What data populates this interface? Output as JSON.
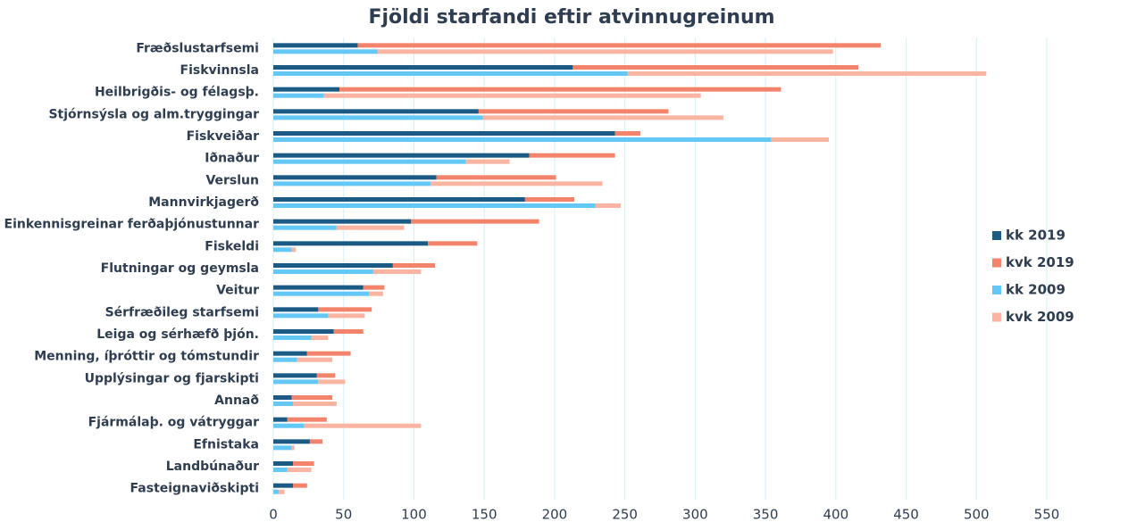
{
  "chart_data": {
    "type": "bar",
    "orientation": "horizontal",
    "title": "Fjöldi starfandi eftir atvinnugreinum",
    "categories": [
      "Fræðslustarfsemi",
      "Fiskvinnsla",
      "Heilbrigðis- og félagsþ.",
      "Stjórnsýsla og alm.tryggingar",
      "Fiskveiðar",
      "Iðnaður",
      "Verslun",
      "Mannvirkjagerð",
      "Einkennisgreinar ferðaþjónustunnar",
      "Fiskeldi",
      "Flutningar og geymsla",
      "Veitur",
      "Sérfræðileg starfsemi",
      "Leiga og sérhæfð þjón.",
      "Menning, íþróttir og tómstundir",
      "Upplýsingar og fjarskipti",
      "Annað",
      "Fjármálaþ. og vátryggar",
      "Efnistaka",
      "Landbúnaður",
      "Fasteignaviðskipti"
    ],
    "series": [
      {
        "name": "kk 2019",
        "color": "#1a5a84",
        "values": [
          60,
          213,
          47,
          146,
          243,
          182,
          116,
          179,
          98,
          110,
          85,
          64,
          32,
          43,
          24,
          31,
          13,
          10,
          26,
          14,
          14
        ]
      },
      {
        "name": "kvk 2019",
        "color": "#f4836b",
        "values": [
          372,
          203,
          314,
          135,
          18,
          61,
          85,
          35,
          91,
          35,
          30,
          15,
          38,
          21,
          31,
          13,
          29,
          28,
          9,
          15,
          10
        ]
      },
      {
        "name": "kk 2009",
        "color": "#63c8f5",
        "values": [
          74,
          252,
          36,
          149,
          354,
          137,
          112,
          229,
          45,
          13,
          71,
          68,
          39,
          27,
          17,
          32,
          14,
          22,
          13,
          10,
          4
        ]
      },
      {
        "name": "kvk 2009",
        "color": "#f9b4a2",
        "values": [
          324,
          255,
          268,
          171,
          41,
          31,
          122,
          18,
          48,
          3,
          34,
          10,
          26,
          12,
          25,
          19,
          31,
          83,
          2,
          17,
          4
        ]
      }
    ],
    "xlim": [
      0,
      550
    ],
    "xticks": [
      0,
      50,
      100,
      150,
      200,
      250,
      300,
      350,
      400,
      450,
      500,
      550
    ],
    "grid": true,
    "legend": "right"
  }
}
